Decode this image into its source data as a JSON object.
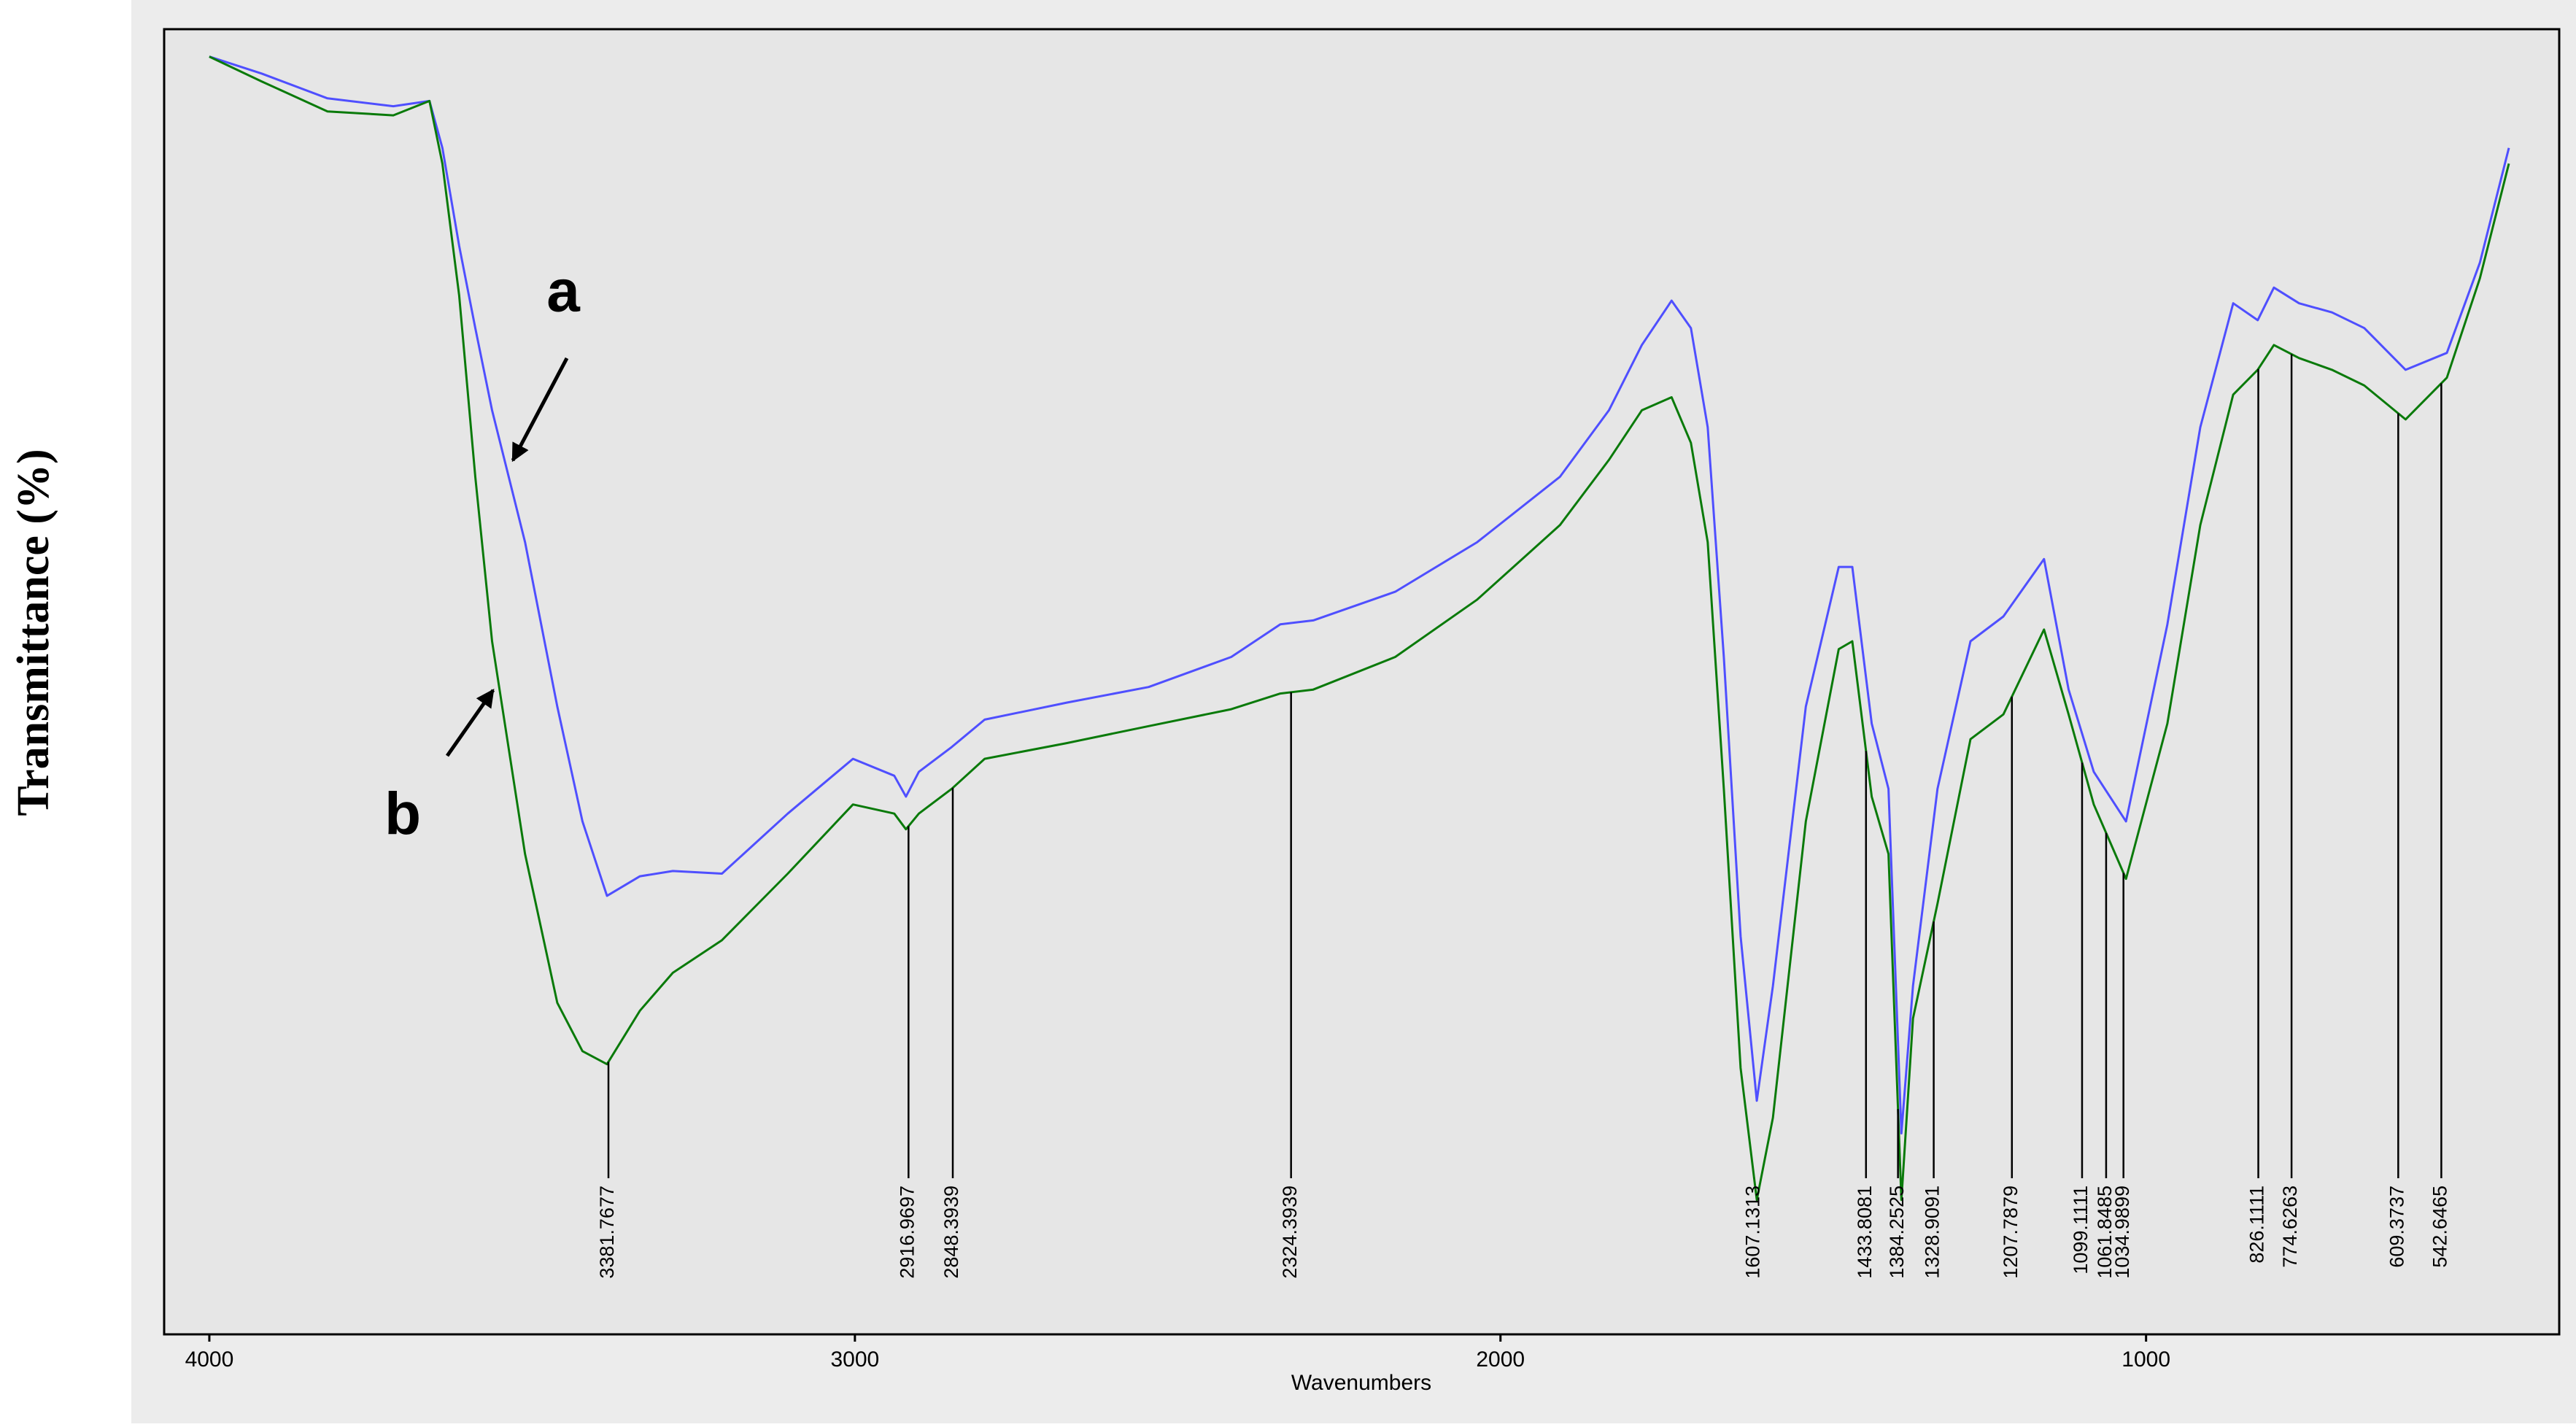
{
  "chart_data": {
    "type": "line",
    "y_label": "Transmittance (%)",
    "x_label": "Wavenumbers",
    "xlim": [
      4070,
      360
    ],
    "ylim": [
      0,
      100
    ],
    "xticks": [
      4000,
      3000,
      2000,
      1000
    ],
    "x": [
      4000,
      3919,
      3817,
      3715,
      3659,
      3639,
      3613,
      3588,
      3562,
      3511,
      3461,
      3422,
      3384,
      3333,
      3282,
      3206,
      3104,
      3003,
      2939,
      2921,
      2901,
      2850,
      2799,
      2672,
      2545,
      2417,
      2341,
      2290,
      2163,
      2036,
      1908,
      1832,
      1781,
      1735,
      1705,
      1679,
      1654,
      1628,
      1603,
      1578,
      1527,
      1476,
      1455,
      1425,
      1399,
      1379,
      1361,
      1323,
      1272,
      1221,
      1158,
      1120,
      1081,
      1031,
      967,
      916,
      865,
      827,
      802,
      763,
      712,
      662,
      598,
      534,
      483,
      438
    ],
    "series": [
      {
        "name": "a",
        "color": "#4f4fff",
        "values": [
          97.9,
          96.6,
          94.7,
          94.1,
          94.5,
          90.9,
          83.4,
          77.1,
          70.8,
          60.7,
          48.1,
          39.3,
          33.6,
          35.1,
          35.5,
          35.3,
          39.9,
          44.1,
          42.8,
          41.2,
          43.1,
          45.0,
          47.1,
          48.4,
          49.6,
          51.9,
          54.4,
          54.7,
          56.9,
          60.7,
          65.7,
          70.8,
          75.8,
          79.2,
          77.1,
          69.5,
          51.9,
          30.5,
          17.9,
          26.7,
          48.1,
          58.8,
          58.8,
          46.8,
          41.8,
          15.4,
          26.7,
          41.8,
          53.1,
          55.0,
          59.4,
          49.4,
          43.1,
          39.3,
          54.4,
          69.5,
          79.0,
          77.7,
          80.2,
          79.0,
          78.3,
          77.1,
          73.9,
          75.2,
          82.1,
          90.9
        ]
      },
      {
        "name": "b",
        "color": "#0a7a0a",
        "values": [
          97.9,
          96.0,
          93.7,
          93.4,
          94.5,
          89.7,
          79.6,
          65.7,
          53.1,
          36.8,
          25.4,
          21.7,
          20.7,
          24.8,
          27.7,
          30.2,
          35.3,
          40.6,
          39.9,
          38.7,
          39.9,
          41.8,
          44.1,
          45.3,
          46.6,
          47.9,
          49.1,
          49.4,
          51.9,
          56.3,
          62.0,
          67.0,
          70.8,
          71.8,
          68.3,
          60.7,
          41.8,
          20.4,
          10.3,
          16.6,
          39.3,
          52.5,
          53.1,
          41.2,
          36.8,
          10.3,
          24.2,
          33.0,
          45.6,
          47.5,
          54.0,
          47.5,
          40.6,
          34.9,
          46.8,
          62.0,
          72.0,
          73.9,
          75.8,
          74.8,
          73.9,
          72.7,
          70.1,
          73.3,
          80.9,
          89.7
        ]
      }
    ],
    "peaks": [
      3381.7677,
      2916.9697,
      2848.3939,
      2324.3939,
      1607.1313,
      1433.8081,
      1384.2525,
      1328.9091,
      1207.7879,
      1099.1111,
      1061.8485,
      1034.9899,
      826.1111,
      774.6263,
      609.3737,
      542.6465
    ]
  }
}
